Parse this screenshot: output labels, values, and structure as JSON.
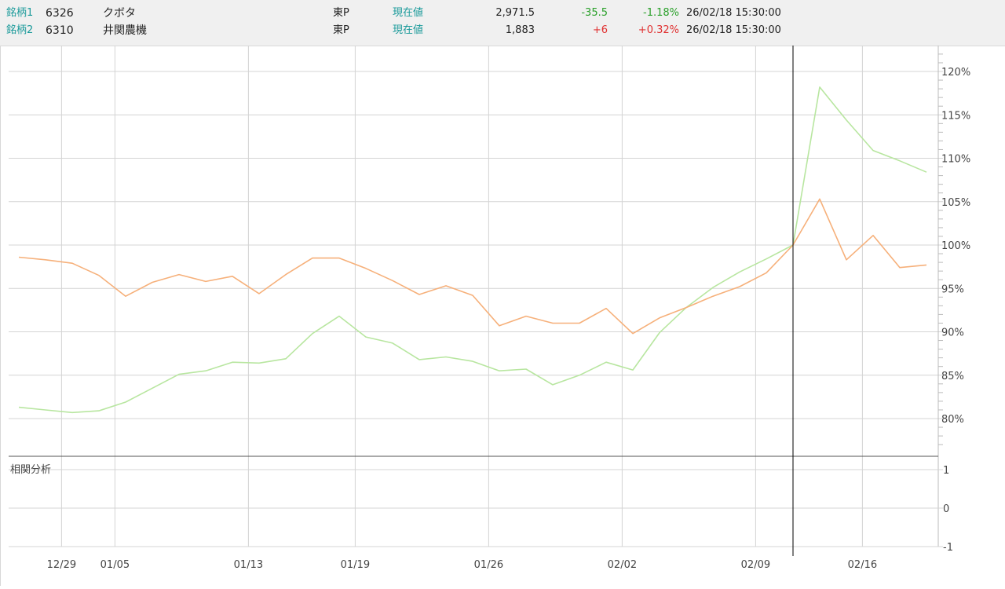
{
  "header": {
    "rows": [
      {
        "label": "銘柄1",
        "code": "6326",
        "name": "クボタ",
        "market": "東P",
        "price_label": "現在値",
        "price": "2,971.5",
        "change": "-35.5",
        "change_pct": "-1.18%",
        "datetime": "26/02/18 15:30:00",
        "direction": "down"
      },
      {
        "label": "銘柄2",
        "code": "6310",
        "name": "井関農機",
        "market": "東P",
        "price_label": "現在値",
        "price": "1,883",
        "change": "+6",
        "change_pct": "+0.32%",
        "datetime": "26/02/18 15:30:00",
        "direction": "up"
      }
    ]
  },
  "colors": {
    "series1": "#b8e6a0",
    "series2": "#f6b07a",
    "grid": "#d4d4d4",
    "axis_text": "#444444",
    "cursor": "#000000",
    "label_teal": "#1a9a9a",
    "down": "#2aa02a",
    "up": "#e03030"
  },
  "chart_data": [
    {
      "type": "line",
      "x_tick_labels": [
        "12/29",
        "01/05",
        "01/13",
        "01/19",
        "01/26",
        "02/02",
        "02/09",
        "02/16"
      ],
      "y_tick_labels": [
        "120%",
        "115%",
        "110%",
        "105%",
        "100%",
        "95%",
        "90%",
        "85%",
        "80%"
      ],
      "ylim": [
        75.5,
        122.5
      ],
      "grid": true,
      "cursor_index": 29,
      "series": [
        {
          "color": "#b8e6a0",
          "values": [
            81.3,
            81.0,
            80.7,
            80.9,
            81.9,
            83.5,
            85.1,
            85.5,
            86.5,
            86.4,
            86.9,
            89.8,
            91.8,
            89.4,
            88.7,
            86.8,
            87.1,
            86.6,
            85.5,
            85.7,
            83.9,
            85.0,
            86.5,
            85.6,
            89.9,
            92.8,
            95.1,
            96.9,
            98.4,
            100.0,
            118.2,
            114.4,
            110.9,
            109.7,
            108.4
          ]
        },
        {
          "color": "#f6b07a",
          "values": [
            98.6,
            98.3,
            97.9,
            96.5,
            94.1,
            95.7,
            96.6,
            95.8,
            96.4,
            94.4,
            96.6,
            98.5,
            98.5,
            97.3,
            95.9,
            94.3,
            95.3,
            94.2,
            90.7,
            91.8,
            91.0,
            91.0,
            92.7,
            89.8,
            91.6,
            92.8,
            94.1,
            95.2,
            96.8,
            100.0,
            105.3,
            98.3,
            101.1,
            97.4,
            97.7
          ]
        }
      ]
    },
    {
      "type": "line",
      "title": "相関分析",
      "y_tick_labels": [
        "1",
        "0",
        "-1"
      ],
      "ylim": [
        -1,
        1
      ],
      "grid": true,
      "series": []
    }
  ]
}
